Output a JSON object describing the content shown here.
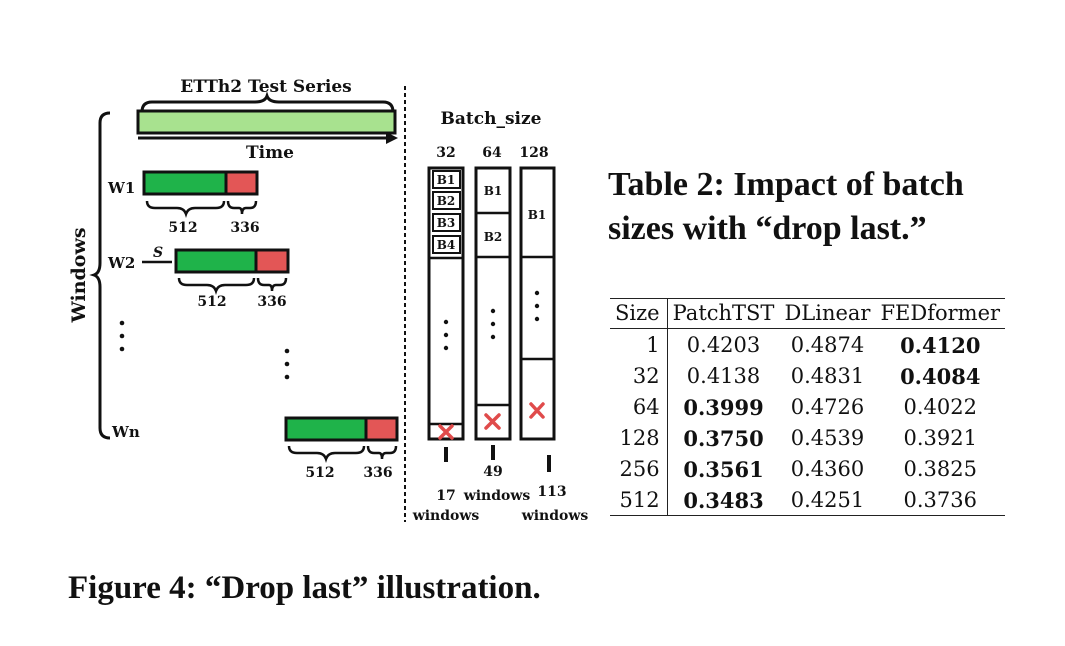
{
  "figure": {
    "series_title": "ETTh2 Test Series",
    "time_label": "Time",
    "windows_label": "Windows",
    "batch_size_label": "Batch_size",
    "batch_sizes": [
      "32",
      "64",
      "128"
    ],
    "window_labels": [
      "W1",
      "W2",
      "Wn"
    ],
    "stride_label": "S",
    "lookback_label": "512",
    "horizon_label": "336",
    "batch_blocks_32": [
      "B1",
      "B2",
      "B3",
      "B4"
    ],
    "batch_blocks_64": [
      "B1",
      "B2"
    ],
    "batch_blocks_128": [
      "B1"
    ],
    "dropped": [
      {
        "count": "17",
        "unit": "windows"
      },
      {
        "count": "49",
        "unit": "windows"
      },
      {
        "count": "113",
        "unit": "windows"
      }
    ],
    "colors": {
      "series": "#a8e28f",
      "lookback": "#1fb34a",
      "horizon": "#e35656",
      "drop": "#e04b4b"
    },
    "caption": "Figure 4: “Drop last” illustration."
  },
  "table": {
    "caption": "Table 2: Impact of batch sizes with “drop last.”",
    "headers": [
      "Size",
      "PatchTST",
      "DLinear",
      "FEDformer"
    ],
    "rows": [
      {
        "size": "1",
        "patchtst": "0.4203",
        "dlinear": "0.4874",
        "fedformer": "0.4120"
      },
      {
        "size": "32",
        "patchtst": "0.4138",
        "dlinear": "0.4831",
        "fedformer": "0.4084"
      },
      {
        "size": "64",
        "patchtst": "0.3999",
        "dlinear": "0.4726",
        "fedformer": "0.4022"
      },
      {
        "size": "128",
        "patchtst": "0.3750",
        "dlinear": "0.4539",
        "fedformer": "0.3921"
      },
      {
        "size": "256",
        "patchtst": "0.3561",
        "dlinear": "0.4360",
        "fedformer": "0.3825"
      },
      {
        "size": "512",
        "patchtst": "0.3483",
        "dlinear": "0.4251",
        "fedformer": "0.3736"
      }
    ]
  }
}
